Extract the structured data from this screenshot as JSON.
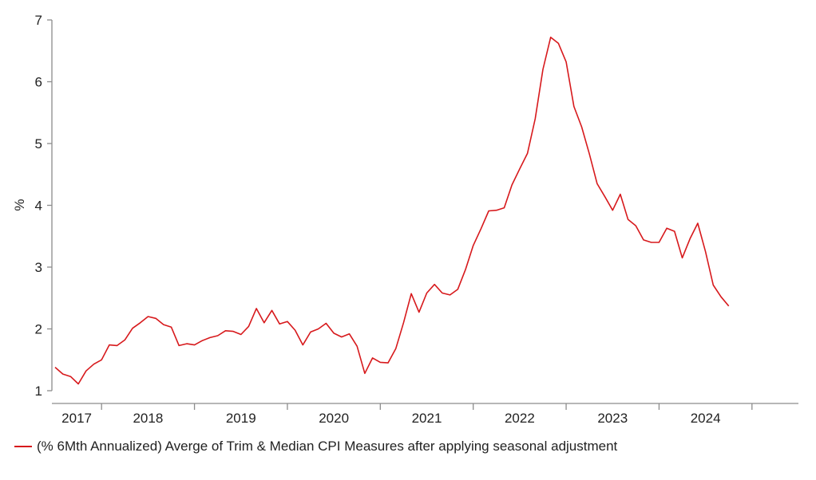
{
  "chart_data": {
    "type": "line",
    "title": "",
    "xlabel": "",
    "ylabel": "%",
    "ylim": [
      1,
      7
    ],
    "yticks": [
      "1",
      "2",
      "3",
      "4",
      "5",
      "6",
      "7"
    ],
    "xlim": [
      "2016-07",
      "2024-07"
    ],
    "year_labels": [
      "2017",
      "2018",
      "2019",
      "2020",
      "2021",
      "2022",
      "2023",
      "2024"
    ],
    "grid": false,
    "legend_position": "bottom-left",
    "colors": {
      "series": "#d7191c",
      "axis": "#8c8c8c"
    },
    "series": [
      {
        "name": "(% 6Mth Annualized) Averge of Trim & Median CPI Measures after applying seasonal adjustment",
        "color": "#d7191c",
        "points": [
          [
            "2016-07",
            1.38
          ],
          [
            "2016-08",
            1.27
          ],
          [
            "2016-09",
            1.23
          ],
          [
            "2016-10",
            1.11
          ],
          [
            "2016-11",
            1.32
          ],
          [
            "2016-12",
            1.43
          ],
          [
            "2017-01",
            1.5
          ],
          [
            "2017-02",
            1.74
          ],
          [
            "2017-03",
            1.73
          ],
          [
            "2017-04",
            1.82
          ],
          [
            "2017-05",
            2.01
          ],
          [
            "2017-06",
            2.1
          ],
          [
            "2017-07",
            2.2
          ],
          [
            "2017-08",
            2.17
          ],
          [
            "2017-09",
            2.07
          ],
          [
            "2017-10",
            2.03
          ],
          [
            "2017-11",
            1.73
          ],
          [
            "2017-12",
            1.76
          ],
          [
            "2018-01",
            1.74
          ],
          [
            "2018-02",
            1.81
          ],
          [
            "2018-03",
            1.86
          ],
          [
            "2018-04",
            1.89
          ],
          [
            "2018-05",
            1.97
          ],
          [
            "2018-06",
            1.96
          ],
          [
            "2018-07",
            1.91
          ],
          [
            "2018-08",
            2.04
          ],
          [
            "2018-09",
            2.33
          ],
          [
            "2018-10",
            2.1
          ],
          [
            "2018-11",
            2.3
          ],
          [
            "2018-12",
            2.08
          ],
          [
            "2019-01",
            2.12
          ],
          [
            "2019-02",
            1.98
          ],
          [
            "2019-03",
            1.74
          ],
          [
            "2019-04",
            1.95
          ],
          [
            "2019-05",
            2.0
          ],
          [
            "2019-06",
            2.09
          ],
          [
            "2019-07",
            1.93
          ],
          [
            "2019-08",
            1.87
          ],
          [
            "2019-09",
            1.92
          ],
          [
            "2019-10",
            1.72
          ],
          [
            "2019-11",
            1.28
          ],
          [
            "2019-12",
            1.53
          ],
          [
            "2020-01",
            1.46
          ],
          [
            "2020-02",
            1.45
          ],
          [
            "2020-03",
            1.68
          ],
          [
            "2020-04",
            2.1
          ],
          [
            "2020-05",
            2.57
          ],
          [
            "2020-06",
            2.27
          ],
          [
            "2020-07",
            2.58
          ],
          [
            "2020-08",
            2.72
          ],
          [
            "2020-09",
            2.58
          ],
          [
            "2020-10",
            2.55
          ],
          [
            "2020-11",
            2.64
          ],
          [
            "2020-12",
            2.96
          ],
          [
            "2021-01",
            3.35
          ],
          [
            "2021-02",
            3.62
          ],
          [
            "2021-03",
            3.91
          ],
          [
            "2021-04",
            3.92
          ],
          [
            "2021-05",
            3.96
          ],
          [
            "2021-06",
            4.33
          ],
          [
            "2021-07",
            4.59
          ],
          [
            "2021-08",
            4.84
          ],
          [
            "2021-09",
            5.4
          ],
          [
            "2021-10",
            6.2
          ],
          [
            "2021-11",
            6.72
          ],
          [
            "2021-12",
            6.62
          ],
          [
            "2022-01",
            6.32
          ],
          [
            "2022-02",
            5.6
          ],
          [
            "2022-03",
            5.27
          ],
          [
            "2022-04",
            4.83
          ],
          [
            "2022-05",
            4.35
          ],
          [
            "2022-06",
            4.14
          ],
          [
            "2022-07",
            3.92
          ],
          [
            "2022-08",
            4.18
          ],
          [
            "2022-09",
            3.77
          ],
          [
            "2022-10",
            3.67
          ],
          [
            "2022-11",
            3.44
          ],
          [
            "2022-12",
            3.4
          ],
          [
            "2023-01",
            3.4
          ],
          [
            "2023-02",
            3.63
          ],
          [
            "2023-03",
            3.58
          ],
          [
            "2023-04",
            3.15
          ],
          [
            "2023-05",
            3.46
          ],
          [
            "2023-06",
            3.71
          ],
          [
            "2023-07",
            3.25
          ],
          [
            "2023-08",
            2.71
          ],
          [
            "2023-09",
            2.52
          ],
          [
            "2023-10",
            2.37
          ]
        ]
      }
    ]
  }
}
